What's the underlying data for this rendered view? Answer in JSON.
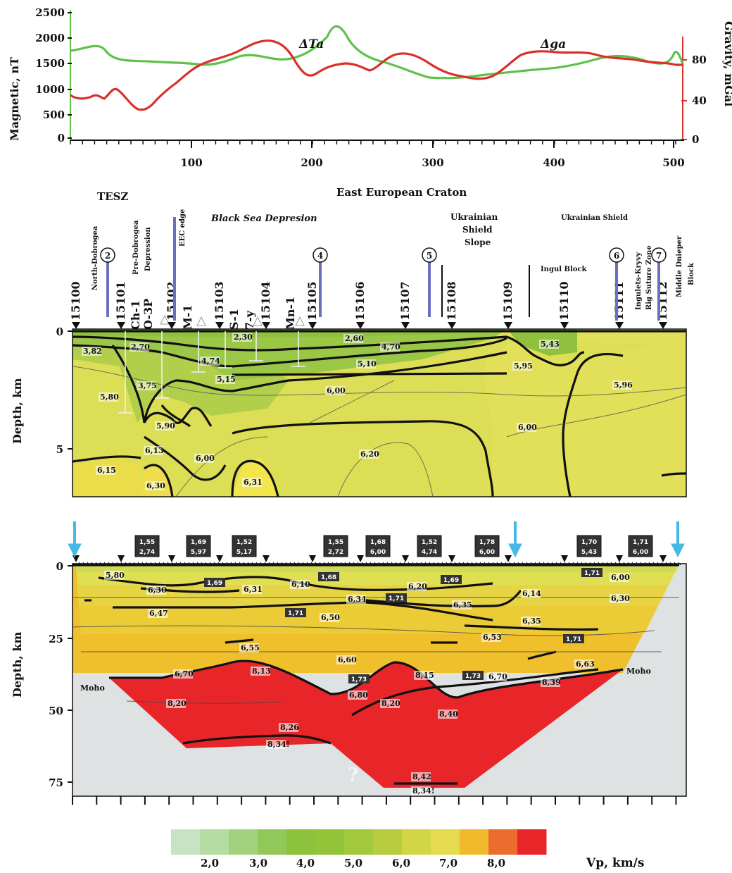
{
  "top_panel": {
    "left_axis_label": "Magnetic, nT",
    "right_axis_label": "Gravity, mGal",
    "left_ticks": [
      "0",
      "500",
      "1000",
      "1500",
      "2000",
      "2500"
    ],
    "right_ticks": [
      "0",
      "40",
      "80"
    ],
    "x_ticks": [
      "100",
      "200",
      "300",
      "400",
      "500"
    ],
    "label_magnetic": "ΔTa",
    "label_gravity": "Δga",
    "colors": {
      "magnetic": "#5ec24a",
      "gravity": "#d9302a"
    }
  },
  "headers": {
    "tesz": "TESZ",
    "craton": "East European Craton",
    "black_sea": "Black Sea Depresion",
    "shield_slope": [
      "Ukrainian",
      "Shield",
      "Slope"
    ],
    "ukr_shield": "Ukrainian Shield",
    "ingul": "Ingul Block"
  },
  "stations": [
    "15100",
    "15101",
    "15102",
    "15103",
    "15104",
    "15105",
    "15106",
    "15107",
    "15108",
    "15109",
    "15110",
    "15111",
    "15112"
  ],
  "circle_markers": [
    "2",
    "4",
    "5",
    "6",
    "7"
  ],
  "wells": [
    "Ch-1",
    "O-3P",
    "M-1",
    "S-1",
    "7-y",
    "Mn-1"
  ],
  "vertical_labels": [
    "North-Dobrogea",
    "Pre-Dobrogea",
    "Depression",
    "EEC edge",
    "Ingulets-Kryvy",
    "Rig Suture Zone",
    "Middle Dnieper",
    "Block"
  ],
  "middle_panel": {
    "axis_label": "Depth, km",
    "ticks": [
      "0",
      "5"
    ],
    "velocities": [
      "3,82",
      "2,70",
      "3,75",
      "5,80",
      "4,74",
      "5,15",
      "2,30",
      "2,60",
      "4,70",
      "5,10",
      "6,00",
      "5,90",
      "6,13",
      "6,00",
      "6,15",
      "6,30",
      "6,31",
      "6,20",
      "5,95",
      "5,43",
      "5,96",
      "6,00"
    ]
  },
  "bottom_panel": {
    "axis_label": "Depth, km",
    "ticks": [
      "0",
      "25",
      "50",
      "75"
    ],
    "velocities": [
      "5,80",
      "6,30",
      "6,31",
      "6,10",
      "6,20",
      "6,34",
      "6,35",
      "6,14",
      "6,00",
      "6,30",
      "6,47",
      "6,50",
      "6,35",
      "6,53",
      "6,55",
      "6,60",
      "6,63",
      "6,70",
      "8,13",
      "8,15",
      "6,70",
      "8,39",
      "6,80",
      "8,20",
      "8,20",
      "8,40",
      "8,26",
      "8,34!",
      "8,42",
      "8,34!"
    ],
    "density_boxes": [
      [
        "1,55",
        "2,74"
      ],
      [
        "1,69",
        "5,97"
      ],
      [
        "1,52",
        "5,17"
      ],
      [
        "1,55",
        "2,72"
      ],
      [
        "1,68",
        "6,00"
      ],
      [
        "1,52",
        "4,74"
      ],
      [
        "1,78",
        "6,00"
      ],
      [
        "1,70",
        "5,43"
      ],
      [
        "1,71",
        "6,00"
      ]
    ],
    "inline_density": [
      "1,69",
      "1,68",
      "1,69",
      "1,71",
      "1,71",
      "1,71",
      "1,71",
      "1,73",
      "1,73"
    ],
    "moho_left": "Moho",
    "moho_right": "Moho",
    "question": "?"
  },
  "legend": {
    "ticks": [
      "2,0",
      "3,0",
      "4,0",
      "5,0",
      "6,0",
      "7,0",
      "8,0"
    ],
    "unit_label": "Vp, km/s",
    "colors": [
      "#c6e4c4",
      "#b4dca0",
      "#a2d27e",
      "#92c85a",
      "#8cc23c",
      "#92c43a",
      "#a2c83c",
      "#b8cc40",
      "#d2d546",
      "#e4dc4e",
      "#f0ba2c",
      "#ec6c2e",
      "#e8262a"
    ]
  }
}
